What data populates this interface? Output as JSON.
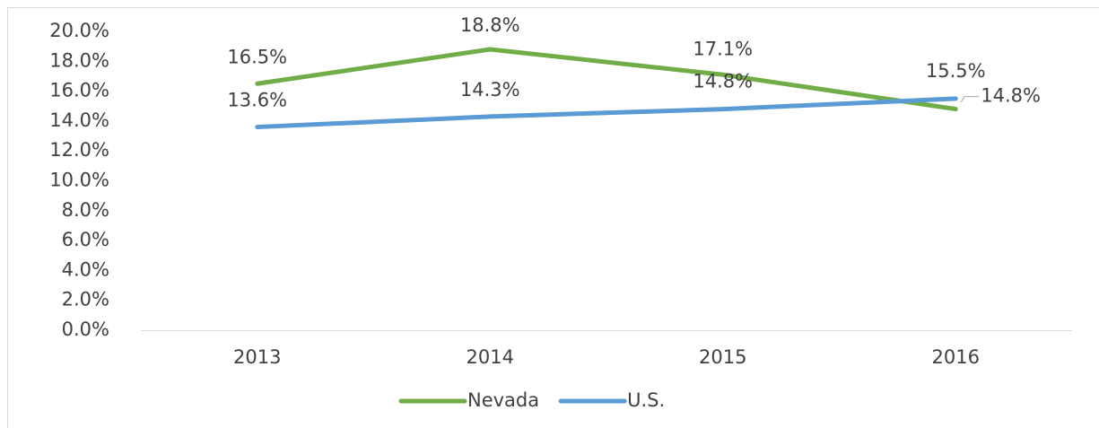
{
  "chart_data": {
    "type": "line",
    "categories": [
      "2013",
      "2014",
      "2015",
      "2016"
    ],
    "series": [
      {
        "name": "Nevada",
        "color": "#70ad47",
        "values": [
          16.5,
          18.8,
          17.1,
          14.8
        ],
        "value_labels": [
          "16.5%",
          "18.8%",
          "17.1%",
          "14.8%"
        ]
      },
      {
        "name": "U.S.",
        "color": "#5b9bd5",
        "values": [
          13.6,
          14.3,
          14.8,
          15.5
        ],
        "value_labels": [
          "13.6%",
          "14.3%",
          "14.8%",
          "15.5%"
        ]
      }
    ],
    "ylim": [
      0,
      20
    ],
    "yticks": [
      {
        "value": 0,
        "label": "0.0%"
      },
      {
        "value": 2,
        "label": "2.0%"
      },
      {
        "value": 4,
        "label": "4.0%"
      },
      {
        "value": 6,
        "label": "6.0%"
      },
      {
        "value": 8,
        "label": "8.0%"
      },
      {
        "value": 10,
        "label": "10.0%"
      },
      {
        "value": 12,
        "label": "12.0%"
      },
      {
        "value": 14,
        "label": "14.0%"
      },
      {
        "value": 16,
        "label": "16.0%"
      },
      {
        "value": 18,
        "label": "18.0%"
      },
      {
        "value": 20,
        "label": "20.0%"
      }
    ],
    "grid": false,
    "legend": "bottom"
  }
}
